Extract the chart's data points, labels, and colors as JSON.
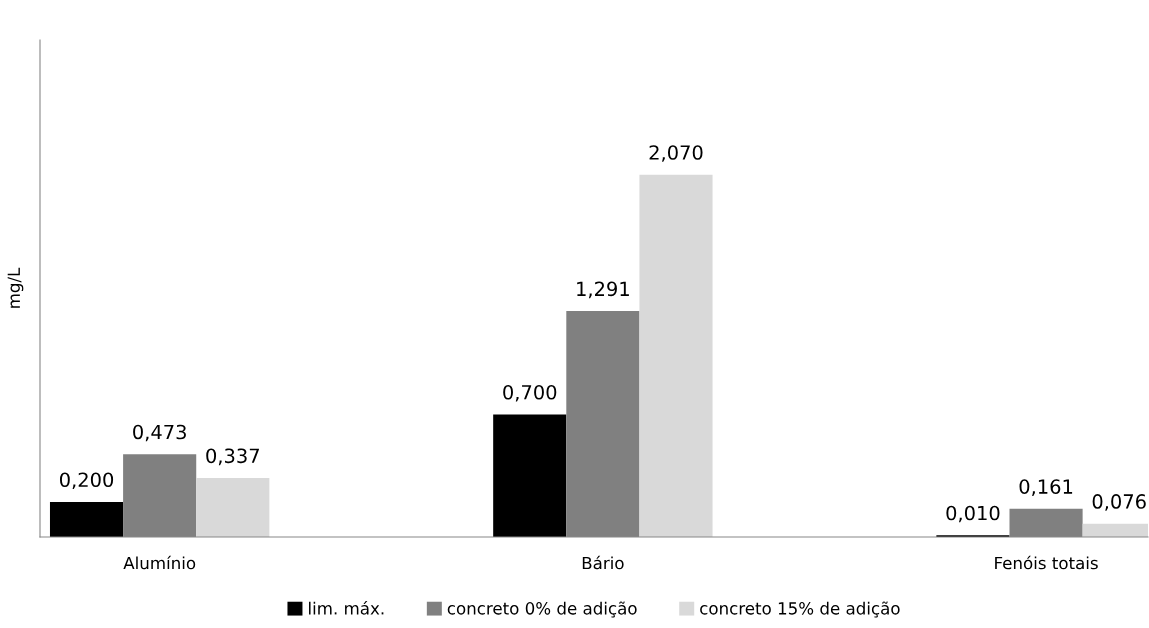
{
  "chart_data": {
    "type": "bar",
    "ylabel": "mg/L",
    "categories": [
      "Alumínio",
      "Bário",
      "Fenóis totais"
    ],
    "series": [
      {
        "name": "lim. máx.",
        "color": "#000000",
        "values": [
          0.2,
          0.7,
          0.01
        ],
        "value_labels": [
          "0,200",
          "0,700",
          "0,010"
        ]
      },
      {
        "name": "concreto 0% de adição",
        "color": "#808080",
        "values": [
          0.473,
          1.291,
          0.161
        ],
        "value_labels": [
          "0,473",
          "1,291",
          "0,161"
        ]
      },
      {
        "name": "concreto 15% de adição",
        "color": "#d9d9d9",
        "values": [
          0.337,
          2.07,
          0.076
        ],
        "value_labels": [
          "0,337",
          "2,070",
          "0,076"
        ]
      }
    ],
    "ylim": [
      0,
      2.84
    ],
    "tick_labels": "x",
    "grid": false,
    "legend": "bottom"
  }
}
